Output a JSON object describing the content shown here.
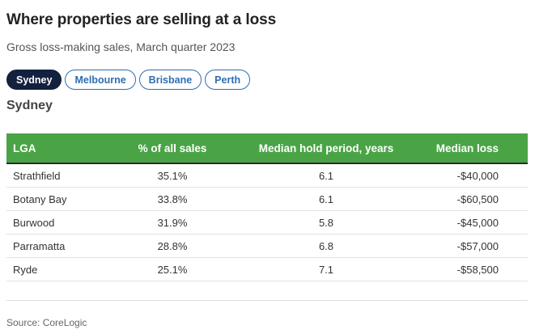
{
  "title": "Where properties are selling at a loss",
  "subtitle": "Gross loss-making sales, March quarter 2023",
  "tabs": [
    {
      "label": "Sydney",
      "active": true
    },
    {
      "label": "Melbourne",
      "active": false
    },
    {
      "label": "Brisbane",
      "active": false
    },
    {
      "label": "Perth",
      "active": false
    }
  ],
  "section_title": "Sydney",
  "table": {
    "headers": [
      "LGA",
      "% of all sales",
      "Median hold period, years",
      "Median loss"
    ],
    "rows": [
      [
        "Strathfield",
        "35.1%",
        "6.1",
        "-$40,000"
      ],
      [
        "Botany Bay",
        "33.8%",
        "6.1",
        "-$60,500"
      ],
      [
        "Burwood",
        "31.9%",
        "5.8",
        "-$45,000"
      ],
      [
        "Parramatta",
        "28.8%",
        "6.8",
        "-$57,000"
      ],
      [
        "Ryde",
        "25.1%",
        "7.1",
        "-$58,500"
      ]
    ]
  },
  "source": "Source: CoreLogic",
  "colors": {
    "header_bg": "#4aa446",
    "active_tab_bg": "#13213f",
    "tab_accent": "#2f6eb0"
  }
}
